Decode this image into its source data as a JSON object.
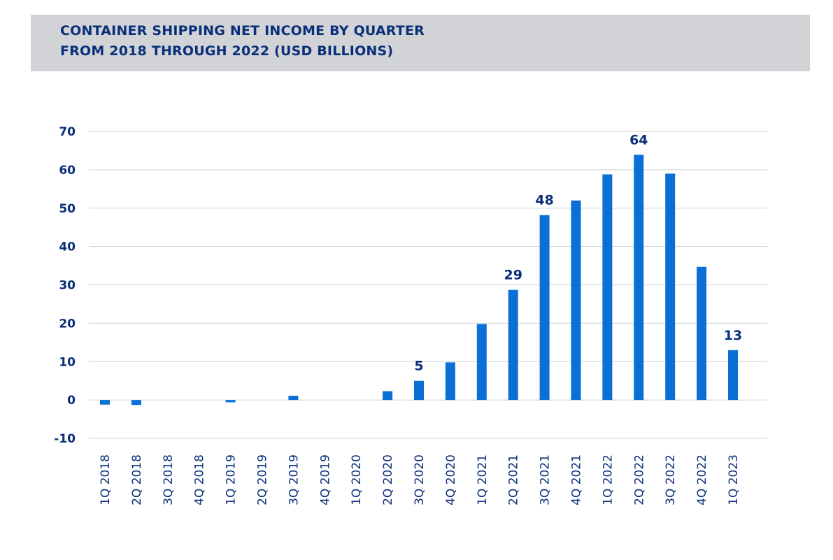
{
  "colors": {
    "bar": "#0a6fd6",
    "text": "#0a2f7a",
    "title_band": "#d1d3d6",
    "grid": "#cfd2d6"
  },
  "chart_data": {
    "type": "bar",
    "title_line1": "CONTAINER SHIPPING NET INCOME BY QUARTER",
    "title_line2": "FROM 2018 THROUGH 2022 (USD BILLIONS)",
    "xlabel": "",
    "ylabel": "",
    "ylim": [
      -10,
      70
    ],
    "yticks": [
      70,
      60,
      50,
      40,
      30,
      20,
      10,
      0,
      -10
    ],
    "grid": true,
    "categories": [
      "1Q 2018",
      "2Q 2018",
      "3Q 2018",
      "4Q 2018",
      "1Q 2019",
      "2Q 2019",
      "3Q 2019",
      "4Q 2019",
      "1Q 2020",
      "2Q 2020",
      "3Q 2020",
      "4Q 2020",
      "1Q 2021",
      "2Q 2021",
      "3Q 2021",
      "4Q 2021",
      "1Q 2022",
      "2Q 2022",
      "3Q 2022",
      "4Q 2022",
      "1Q 2023"
    ],
    "values": [
      -1.2,
      -1.3,
      0,
      0,
      -0.6,
      0,
      1.1,
      0,
      0,
      2.3,
      5,
      9.8,
      19.8,
      28.7,
      48.2,
      52,
      58.8,
      63.9,
      59,
      34.7,
      13
    ],
    "data_labels": [
      {
        "category": "3Q 2020",
        "text": "5"
      },
      {
        "category": "2Q 2021",
        "text": "29"
      },
      {
        "category": "3Q 2021",
        "text": "48"
      },
      {
        "category": "2Q 2022",
        "text": "64"
      },
      {
        "category": "1Q 2023",
        "text": "13"
      }
    ]
  }
}
